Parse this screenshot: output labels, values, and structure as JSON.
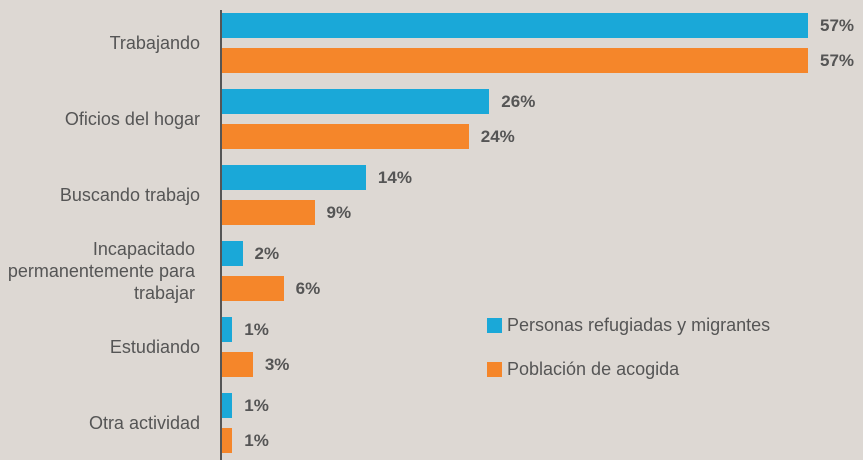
{
  "chart_data": {
    "type": "bar",
    "orientation": "horizontal",
    "categories": [
      "Trabajando",
      "Oficios del hogar",
      "Buscando trabajo",
      "Incapacitado permanentemente para trabajar",
      "Estudiando",
      "Otra actividad"
    ],
    "series": [
      {
        "name": "Personas refugiadas y migrantes",
        "color": "#1aa8d8",
        "values": [
          57,
          26,
          14,
          2,
          1,
          1
        ],
        "value_labels": [
          "57%",
          "26%",
          "14%",
          "2%",
          "1%",
          "1%"
        ]
      },
      {
        "name": "Población de acogida",
        "color": "#f5862a",
        "values": [
          57,
          24,
          9,
          6,
          3,
          1
        ],
        "value_labels": [
          "57%",
          "24%",
          "9%",
          "6%",
          "3%",
          "1%"
        ]
      }
    ]
  }
}
